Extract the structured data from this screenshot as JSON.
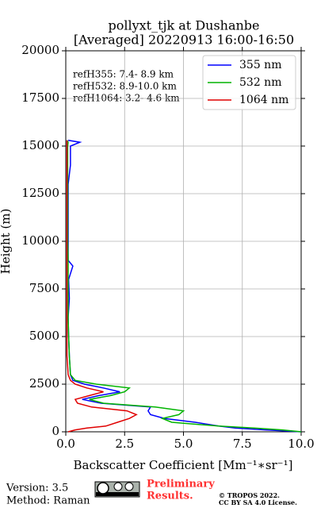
{
  "chart_data": {
    "type": "line",
    "title": "pollyxt_tjk at Dushanbe",
    "subtitle": "[Averaged] 20220913 16:00-16:50",
    "x_label": "Backscatter Coefficient [Mm⁻¹∗sr⁻¹]",
    "y_label": "Height (m)",
    "annotations": [
      "refH355:  7.4- 8.9 km",
      "refH532:  8.9-10.0 km",
      "refH1064:  3.2- 4.6 km"
    ],
    "y": [
      0,
      100,
      200,
      300,
      500,
      700,
      900,
      1100,
      1300,
      1500,
      1700,
      1900,
      2100,
      2300,
      2500,
      2700,
      3000,
      4000,
      5000,
      6000,
      7000,
      8000,
      8700,
      9000,
      10000,
      11000,
      12000,
      13000,
      14000,
      15000,
      15200,
      15300
    ],
    "series": [
      {
        "name": "355 nm",
        "color": "#0000ff",
        "values": [
          10,
          8.5,
          7.2,
          6.5,
          5.5,
          4.2,
          3.6,
          3.5,
          3.6,
          1.5,
          0.7,
          1.4,
          2.3,
          1.6,
          0.8,
          0.3,
          0.2,
          0.15,
          0.12,
          0.1,
          0.15,
          0.12,
          0.3,
          0.1,
          0.1,
          0.1,
          0.1,
          0.1,
          0.2,
          0.2,
          0.6,
          0.1
        ]
      },
      {
        "name": "532 nm",
        "color": "#00b400",
        "values": [
          10,
          9.2,
          8.0,
          6.5,
          4.5,
          4.1,
          4.8,
          5.0,
          3.8,
          1.6,
          1.0,
          1.9,
          2.5,
          2.7,
          1.3,
          0.4,
          0.2,
          0.15,
          0.12,
          0.1,
          0.1,
          0.1,
          0.1,
          0.1,
          0.08,
          0.08,
          0.08,
          0.08,
          0.08,
          0.08,
          0.1,
          0.05
        ]
      },
      {
        "name": "1064 nm",
        "color": "#e00000",
        "values": [
          0.1,
          0.4,
          0.9,
          1.7,
          2.2,
          2.7,
          3.0,
          2.6,
          1.1,
          0.5,
          0.4,
          1.0,
          1.6,
          0.9,
          0.4,
          0.2,
          0.1,
          0.05,
          0.05,
          0.05,
          0.05,
          0.05,
          0.05,
          0.05,
          0.05,
          0.05,
          0.05,
          0.05,
          0.05,
          0.05,
          0.05,
          0.05
        ]
      }
    ],
    "xlim": [
      0,
      10
    ],
    "ylim": [
      0,
      20000
    ],
    "xticks": [
      {
        "value": 0,
        "label": "0.0"
      },
      2.5,
      {
        "value": 5,
        "label": "5.0"
      },
      7.5,
      {
        "value": 10,
        "label": "10.0"
      }
    ],
    "yticks": [
      0,
      2500,
      5000,
      7500,
      10000,
      12500,
      15000,
      17500,
      20000
    ],
    "grid": true,
    "legend": "upper right"
  },
  "footer": {
    "version": "Version: 3.5",
    "method": "Method: Raman",
    "preliminary": [
      "Preliminary",
      "Results."
    ],
    "copyright": [
      "© TROPOS 2022.",
      "CC BY SA 4.0 License."
    ]
  }
}
